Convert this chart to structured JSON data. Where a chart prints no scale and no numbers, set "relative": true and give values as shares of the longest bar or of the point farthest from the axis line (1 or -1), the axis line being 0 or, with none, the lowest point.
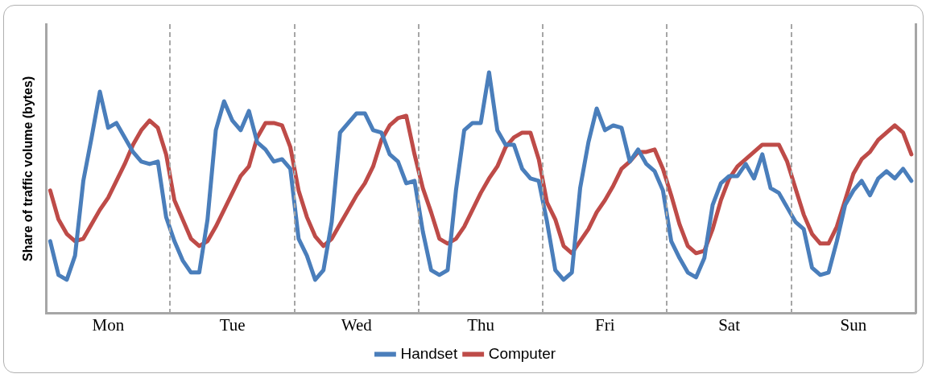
{
  "chart_data": {
    "type": "line",
    "relative": true,
    "ylabel": "Share of traffic volume (bytes)",
    "categories": [
      null,
      null,
      null,
      null,
      null,
      null,
      null,
      "Mon",
      null,
      null,
      null,
      null,
      null,
      null,
      null,
      null,
      null,
      null,
      null,
      null,
      null,
      null,
      "Tue",
      null,
      null,
      null,
      null,
      null,
      null,
      null,
      null,
      null,
      null,
      null,
      null,
      null,
      null,
      "Wed",
      null,
      null,
      null,
      null,
      null,
      null,
      null,
      null,
      null,
      null,
      null,
      null,
      null,
      null,
      "Thu",
      null,
      null,
      null,
      null,
      null,
      null,
      null,
      null,
      null,
      null,
      null,
      null,
      null,
      null,
      "Fri",
      null,
      null,
      null,
      null,
      null,
      null,
      null,
      null,
      null,
      null,
      null,
      null,
      null,
      null,
      "Sat",
      null,
      null,
      null,
      null,
      null,
      null,
      null,
      null,
      null,
      null,
      null,
      null,
      null,
      null,
      "Sun",
      null,
      null,
      null,
      null,
      null,
      null,
      null
    ],
    "legend": "bottom",
    "marker": "none",
    "line_style": "solid",
    "series": [
      {
        "name": "Handset",
        "color": "#4a7ebb",
        "values": [
          0.3,
          0.16,
          0.14,
          0.24,
          0.55,
          0.73,
          0.92,
          0.77,
          0.79,
          0.73,
          0.67,
          0.63,
          0.62,
          0.63,
          0.4,
          0.3,
          0.22,
          0.17,
          0.17,
          0.39,
          0.76,
          0.88,
          0.8,
          0.76,
          0.84,
          0.71,
          0.68,
          0.63,
          0.64,
          0.6,
          0.31,
          0.24,
          0.14,
          0.18,
          0.38,
          0.75,
          0.79,
          0.83,
          0.83,
          0.76,
          0.75,
          0.66,
          0.63,
          0.54,
          0.55,
          0.34,
          0.18,
          0.16,
          0.18,
          0.51,
          0.76,
          0.79,
          0.79,
          1,
          0.76,
          0.7,
          0.7,
          0.6,
          0.56,
          0.55,
          0.38,
          0.18,
          0.14,
          0.17,
          0.52,
          0.71,
          0.85,
          0.76,
          0.78,
          0.77,
          0.63,
          0.68,
          0.62,
          0.59,
          0.51,
          0.3,
          0.23,
          0.17,
          0.15,
          0.23,
          0.45,
          0.54,
          0.57,
          0.57,
          0.62,
          0.56,
          0.66,
          0.52,
          0.5,
          0.44,
          0.38,
          0.35,
          0.19,
          0.16,
          0.17,
          0.3,
          0.45,
          0.51,
          0.55,
          0.49,
          0.56,
          0.59,
          0.56,
          0.6,
          0.55
        ]
      },
      {
        "name": "Computer",
        "color": "#be4b48",
        "values": [
          0.51,
          0.39,
          0.33,
          0.3,
          0.31,
          0.37,
          0.43,
          0.48,
          0.55,
          0.62,
          0.7,
          0.76,
          0.8,
          0.77,
          0.66,
          0.47,
          0.39,
          0.31,
          0.28,
          0.3,
          0.36,
          0.43,
          0.5,
          0.57,
          0.61,
          0.73,
          0.79,
          0.79,
          0.78,
          0.69,
          0.51,
          0.4,
          0.32,
          0.28,
          0.31,
          0.37,
          0.43,
          0.49,
          0.54,
          0.61,
          0.72,
          0.78,
          0.81,
          0.82,
          0.66,
          0.52,
          0.42,
          0.31,
          0.29,
          0.31,
          0.36,
          0.43,
          0.5,
          0.56,
          0.61,
          0.69,
          0.73,
          0.75,
          0.75,
          0.64,
          0.46,
          0.39,
          0.28,
          0.25,
          0.3,
          0.35,
          0.42,
          0.47,
          0.53,
          0.6,
          0.63,
          0.67,
          0.67,
          0.68,
          0.6,
          0.49,
          0.37,
          0.28,
          0.25,
          0.26,
          0.35,
          0.47,
          0.56,
          0.61,
          0.64,
          0.67,
          0.7,
          0.7,
          0.7,
          0.63,
          0.52,
          0.41,
          0.33,
          0.29,
          0.29,
          0.36,
          0.47,
          0.58,
          0.64,
          0.67,
          0.72,
          0.75,
          0.78,
          0.75,
          0.66
        ]
      }
    ]
  }
}
